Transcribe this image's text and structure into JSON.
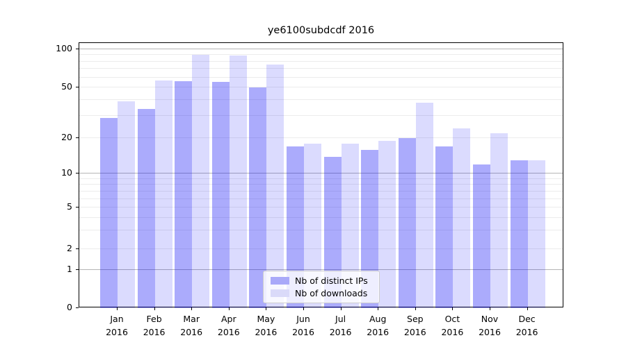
{
  "chart_data": {
    "type": "bar",
    "title": "ye6100subdcdf 2016",
    "categories": [
      {
        "month": "Jan",
        "year": "2016"
      },
      {
        "month": "Feb",
        "year": "2016"
      },
      {
        "month": "Mar",
        "year": "2016"
      },
      {
        "month": "Apr",
        "year": "2016"
      },
      {
        "month": "May",
        "year": "2016"
      },
      {
        "month": "Jun",
        "year": "2016"
      },
      {
        "month": "Jul",
        "year": "2016"
      },
      {
        "month": "Aug",
        "year": "2016"
      },
      {
        "month": "Sep",
        "year": "2016"
      },
      {
        "month": "Oct",
        "year": "2016"
      },
      {
        "month": "Nov",
        "year": "2016"
      },
      {
        "month": "Dec",
        "year": "2016"
      }
    ],
    "series": [
      {
        "name": "Nb of distinct IPs",
        "color": "#a9a9f9",
        "fill_rgba": "rgba(10,10,245,0.34)",
        "values": [
          29,
          34,
          56,
          55,
          50,
          17,
          14,
          16,
          20,
          17,
          12,
          13
        ]
      },
      {
        "name": "Nb of downloads",
        "color": "#dadaf9",
        "fill_rgba": "rgba(10,10,245,0.145)",
        "values": [
          39,
          57,
          90,
          89,
          76,
          18,
          18,
          19,
          38,
          24,
          22,
          13
        ]
      }
    ],
    "y_axis": {
      "tick_values": [
        100,
        50,
        20,
        10,
        5,
        2,
        1,
        0
      ],
      "major_grid_values": [
        100,
        10,
        1
      ],
      "minor_grid_values": [
        90,
        80,
        70,
        60,
        50,
        40,
        30,
        20,
        9,
        8,
        7,
        6,
        5,
        4,
        3,
        2
      ],
      "scale": "log above 1, linear below 1",
      "ylim": [
        0,
        110
      ]
    },
    "x_axis": {
      "tick_label_lines": 2
    },
    "legend": {
      "position": "lower center",
      "entries": [
        "Nb of distinct IPs",
        "Nb of downloads"
      ]
    },
    "grid": true
  }
}
